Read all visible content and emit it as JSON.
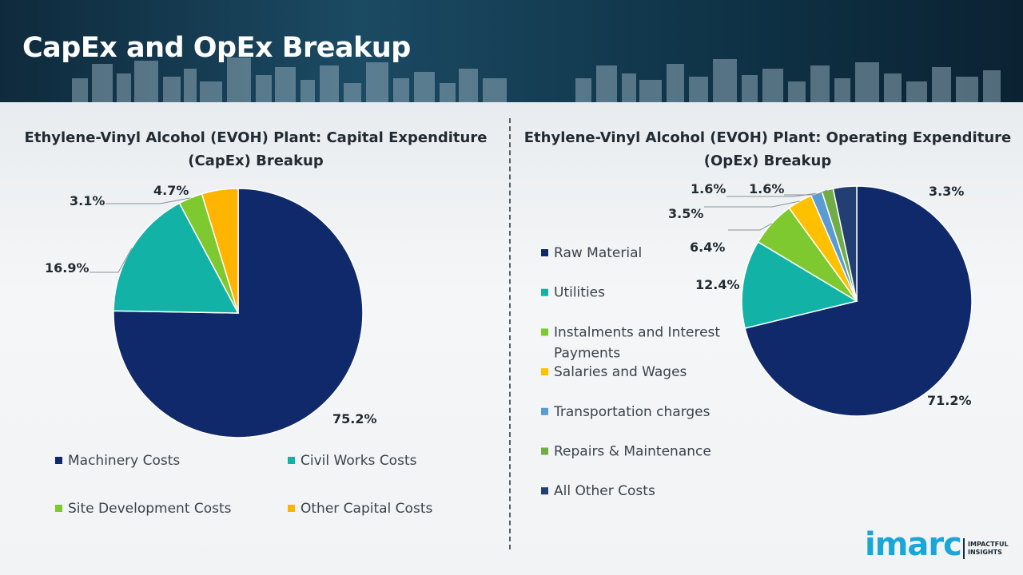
{
  "page": {
    "title": "CapEx and OpEx Breakup"
  },
  "brand": {
    "name": "imarc",
    "tagline": "IMPACTFUL INSIGHTS"
  },
  "colors": {
    "banner": "#143b52",
    "navy": "#10296a",
    "teal": "#12b3a6",
    "lime": "#7dc92f",
    "orange": "#ffb400",
    "light_blue": "#5b9bd5",
    "green": "#70ad47",
    "dark_navy": "#223e72"
  },
  "chart_data": [
    {
      "type": "pie",
      "title": "Ethylene-Vinyl Alcohol (EVOH) Plant: Capital Expenditure (CapEx) Breakup",
      "title_lines": [
        "Ethylene-Vinyl Alcohol (EVOH) Plant: Capital Expenditure",
        "(CapEx) Breakup"
      ],
      "categories": [
        "Machinery Costs",
        "Civil Works Costs",
        "Site Development Costs",
        "Other Capital Costs"
      ],
      "values": [
        75.2,
        16.9,
        3.1,
        4.7
      ],
      "labels": [
        "75.2%",
        "16.9%",
        "3.1%",
        "4.7%"
      ],
      "colors": [
        "#10296a",
        "#12b3a6",
        "#7dc92f",
        "#ffb400"
      ],
      "legend_position": "bottom"
    },
    {
      "type": "pie",
      "title": "Ethylene-Vinyl Alcohol (EVOH) Plant: Operating Expenditure (OpEx) Breakup",
      "title_lines": [
        "Ethylene-Vinyl Alcohol (EVOH) Plant: Operating Expenditure",
        "(OpEx) Breakup"
      ],
      "categories": [
        "Raw Material",
        "Utilities",
        "Instalments and Interest Payments",
        "Salaries and Wages",
        "Transportation charges",
        "Repairs & Maintenance",
        "All Other Costs"
      ],
      "legend_lines": [
        [
          "Raw Material"
        ],
        [
          "Utilities"
        ],
        [
          "Instalments and Interest",
          "Payments"
        ],
        [
          "Salaries and Wages"
        ],
        [
          "Transportation charges"
        ],
        [
          "Repairs & Maintenance"
        ],
        [
          "All Other Costs"
        ]
      ],
      "values": [
        71.2,
        12.4,
        6.4,
        3.5,
        1.6,
        1.6,
        3.3
      ],
      "labels": [
        "71.2%",
        "12.4%",
        "6.4%",
        "3.5%",
        "1.6%",
        "1.6%",
        "3.3%"
      ],
      "colors": [
        "#10296a",
        "#12b3a6",
        "#7dc92f",
        "#ffc000",
        "#5b9bd5",
        "#70ad47",
        "#223e72"
      ],
      "legend_position": "left"
    }
  ]
}
